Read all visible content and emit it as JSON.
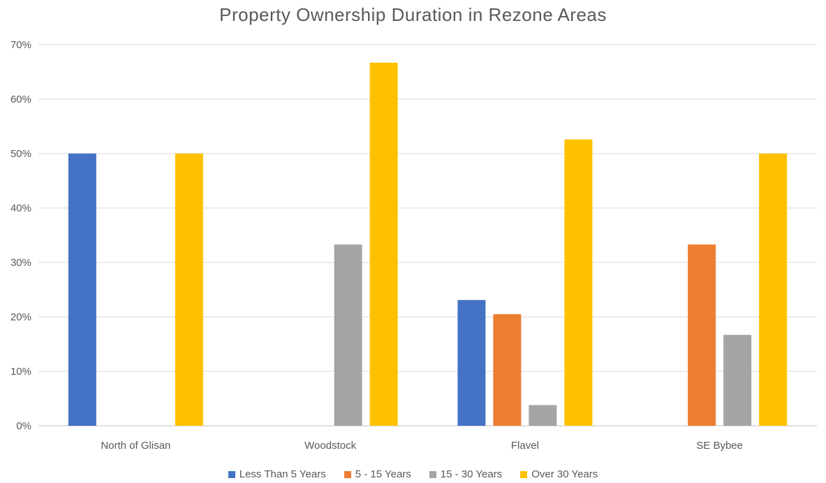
{
  "chart_data": {
    "type": "bar",
    "title": "Property Ownership Duration in Rezone Areas",
    "categories": [
      "North of Glisan",
      "Woodstock",
      "Flavel",
      "SE Bybee"
    ],
    "series": [
      {
        "name": "Less Than 5 Years",
        "color": "#4472C4",
        "values": [
          50,
          0,
          23.1,
          0
        ]
      },
      {
        "name": "5 - 15 Years",
        "color": "#ED7D31",
        "values": [
          0,
          0,
          20.5,
          33.3
        ]
      },
      {
        "name": "15 - 30 Years",
        "color": "#A5A5A5",
        "values": [
          0,
          33.3,
          3.8,
          16.7
        ]
      },
      {
        "name": "Over 30 Years",
        "color": "#FFC000",
        "values": [
          50,
          66.7,
          52.6,
          50
        ]
      }
    ],
    "yticks": [
      "0%",
      "10%",
      "20%",
      "30%",
      "40%",
      "50%",
      "60%",
      "70%"
    ],
    "ylim": [
      0,
      70
    ],
    "grid": true,
    "legend_position": "bottom"
  }
}
